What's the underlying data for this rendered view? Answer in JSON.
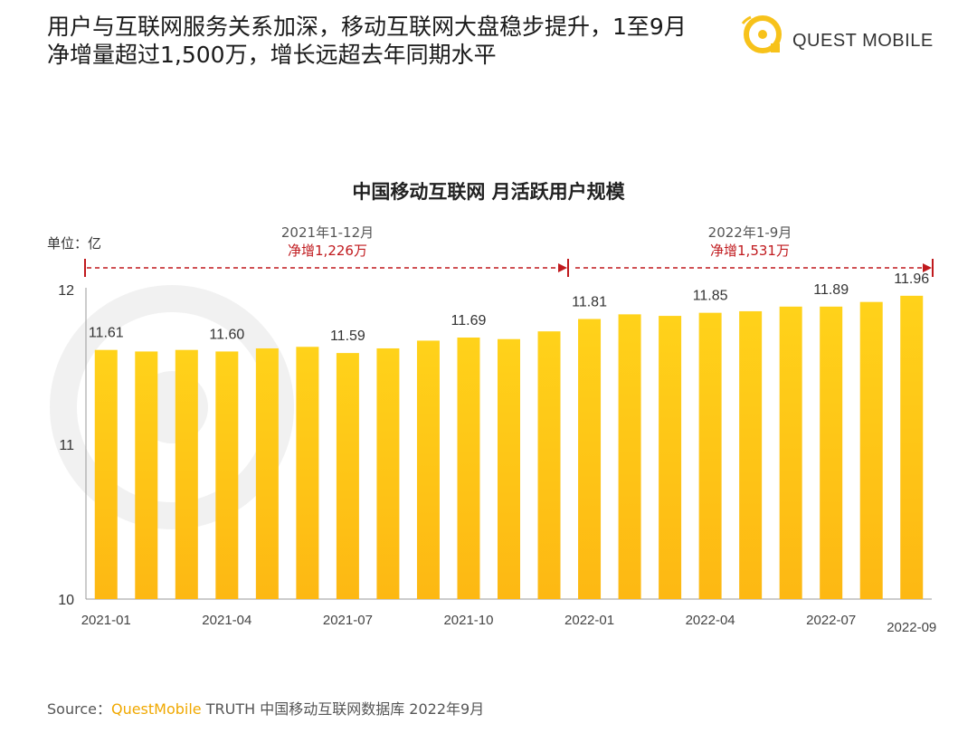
{
  "headline": {
    "line1": "用户与互联网服务关系加深，移动互联网大盘稳步提升，1至9月",
    "line2": "净增量超过1,500万，增长远超去年同期水平"
  },
  "brand": {
    "name": "QUEST MOBILE"
  },
  "colors": {
    "bar_top": "#ffd21a",
    "bar_bottom": "#fdb813",
    "accent_red": "#c0191d",
    "brand_yellow": "#f7c21a"
  },
  "periods": [
    {
      "range": "2021年1-12月",
      "net": "净增1,226万"
    },
    {
      "range": "2022年1-9月",
      "net": "净增1,531万"
    }
  ],
  "chart_data": {
    "type": "bar",
    "title": "中国移动互联网 月活跃用户规模",
    "unit_label": "单位：亿",
    "ylim": [
      10,
      12
    ],
    "y_ticks": [
      "10",
      "11",
      "12"
    ],
    "categories": [
      "2021-01",
      "2021-02",
      "2021-03",
      "2021-04",
      "2021-05",
      "2021-06",
      "2021-07",
      "2021-08",
      "2021-09",
      "2021-10",
      "2021-11",
      "2021-12",
      "2022-01",
      "2022-02",
      "2022-03",
      "2022-04",
      "2022-05",
      "2022-06",
      "2022-07",
      "2022-08",
      "2022-09"
    ],
    "x_tick_labels": [
      "2021-01",
      "",
      "",
      "2021-04",
      "",
      "",
      "2021-07",
      "",
      "",
      "2021-10",
      "",
      "",
      "2022-01",
      "",
      "",
      "2022-04",
      "",
      "",
      "2022-07",
      "",
      "2022-09"
    ],
    "values": [
      11.61,
      11.6,
      11.61,
      11.6,
      11.62,
      11.63,
      11.59,
      11.62,
      11.67,
      11.69,
      11.68,
      11.73,
      11.81,
      11.84,
      11.83,
      11.85,
      11.86,
      11.89,
      11.89,
      11.92,
      11.96
    ],
    "data_labels": [
      "11.61",
      "",
      "",
      "11.60",
      "",
      "",
      "11.59",
      "",
      "",
      "11.69",
      "",
      "",
      "11.81",
      "",
      "",
      "11.85",
      "",
      "",
      "11.89",
      "",
      "11.96"
    ]
  },
  "source": {
    "prefix": "Source：",
    "brand": "QuestMobile",
    "rest": " TRUTH 中国移动互联网数据库 2022年9月"
  }
}
